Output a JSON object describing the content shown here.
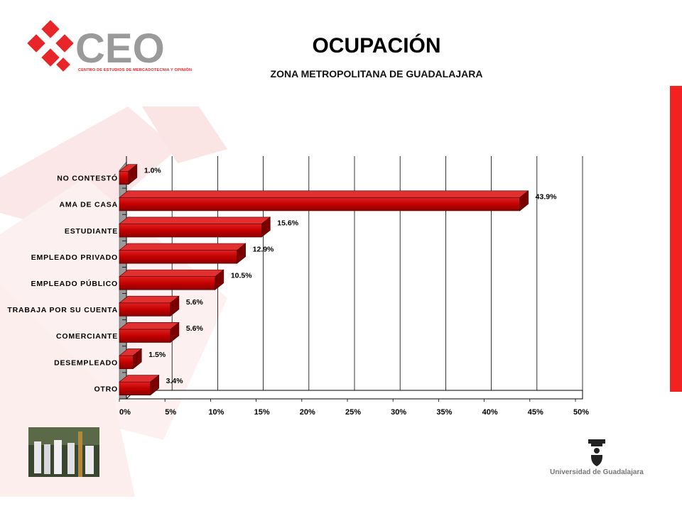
{
  "header": {
    "title": "OCUPACIÓN",
    "subtitle": "ZONA METROPOLITANA DE GUADALAJARA"
  },
  "logo": {
    "text": "CEO",
    "tagline": "CENTRO DE ESTUDIOS DE MERCADOTECNIA Y OPINIÓN"
  },
  "footer": {
    "university": "Universidad de Guadalajara"
  },
  "colors": {
    "bar": "#cc0000",
    "accent": "#f42121",
    "logo_gray": "#9a9a9a"
  },
  "chart_data": {
    "type": "bar",
    "orientation": "horizontal",
    "categories": [
      "NO CONTESTÓ",
      "AMA DE CASA",
      "ESTUDIANTE",
      "EMPLEADO PRIVADO",
      "EMPLEADO PÚBLICO",
      "TRABAJA POR SU CUENTA",
      "COMERCIANTE",
      "DESEMPLEADO",
      "OTRO"
    ],
    "values": [
      1.0,
      43.9,
      15.6,
      12.9,
      10.5,
      5.6,
      5.6,
      1.5,
      3.4
    ],
    "value_labels": [
      "1.0%",
      "43.9%",
      "15.6%",
      "12.9%",
      "10.5%",
      "5.6%",
      "5.6%",
      "1.5%",
      "3.4%"
    ],
    "ticks": [
      "0%",
      "5%",
      "10%",
      "15%",
      "20%",
      "25%",
      "30%",
      "35%",
      "40%",
      "45%",
      "50%"
    ],
    "xlim": [
      0,
      50
    ],
    "grid": true
  }
}
